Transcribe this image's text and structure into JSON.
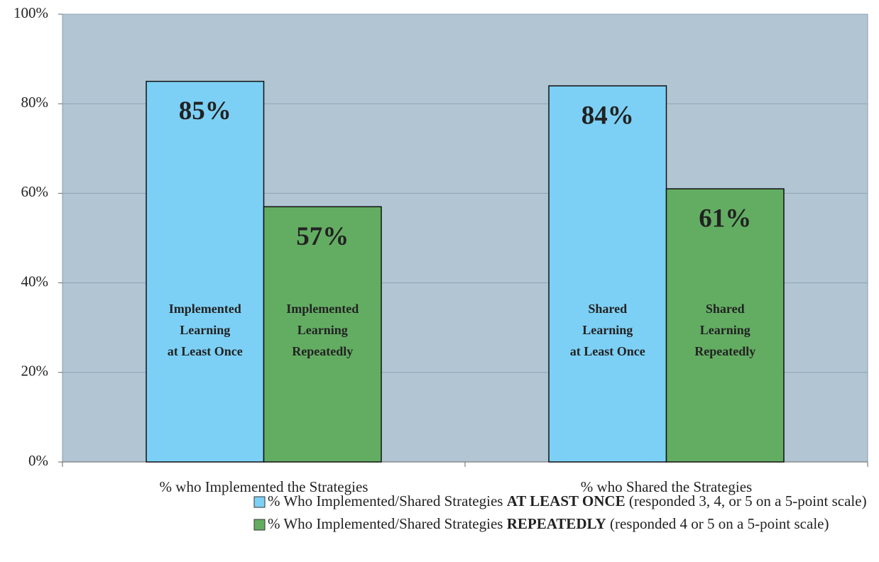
{
  "chart_data": {
    "type": "bar",
    "categories": [
      "% who Implemented the Strategies",
      "% who Shared the Strategies"
    ],
    "series": [
      {
        "name": [
          "% Who Implemented/Shared Strategies ",
          "AT LEAST ONCE",
          " (responded 3, 4, or 5 on a 5-point scale)"
        ],
        "color": "#7dd0f5",
        "values": [
          85,
          84
        ],
        "value_labels": [
          "85%",
          "84%"
        ],
        "bar_labels": [
          [
            "Implemented",
            "Learning",
            "at Least Once"
          ],
          [
            "Shared",
            "Learning",
            "at Least Once"
          ]
        ]
      },
      {
        "name": [
          "% Who Implemented/Shared Strategies ",
          "REPEATEDLY",
          " (responded 4 or 5 on a 5-point scale)"
        ],
        "color": "#63ad63",
        "values": [
          57,
          61
        ],
        "value_labels": [
          "57%",
          "61%"
        ],
        "bar_labels": [
          [
            "Implemented",
            "Learning",
            "Repeatedly"
          ],
          [
            "Shared",
            "Learning",
            "Repeatedly"
          ]
        ]
      }
    ],
    "ylim": [
      0,
      100
    ],
    "yticks": [
      {
        "value": 0,
        "label": "0%"
      },
      {
        "value": 20,
        "label": "20%"
      },
      {
        "value": 40,
        "label": "40%"
      },
      {
        "value": 60,
        "label": "60%"
      },
      {
        "value": 80,
        "label": "80%"
      },
      {
        "value": 100,
        "label": "100%"
      }
    ],
    "grid": true,
    "plot_background": "#b1c5d3",
    "legend": "bottom"
  }
}
